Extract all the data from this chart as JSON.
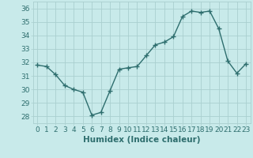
{
  "x": [
    0,
    1,
    2,
    3,
    4,
    5,
    6,
    7,
    8,
    9,
    10,
    11,
    12,
    13,
    14,
    15,
    16,
    17,
    18,
    19,
    20,
    21,
    22,
    23
  ],
  "y": [
    31.8,
    31.7,
    31.1,
    30.3,
    30.0,
    29.8,
    28.1,
    28.3,
    29.9,
    31.5,
    31.6,
    31.7,
    32.5,
    33.3,
    33.5,
    33.9,
    35.4,
    35.8,
    35.7,
    35.8,
    34.5,
    32.1,
    31.2,
    31.9
  ],
  "xlabel": "Humidex (Indice chaleur)",
  "ylim": [
    27.5,
    36.5
  ],
  "xlim": [
    -0.5,
    23.5
  ],
  "yticks": [
    28,
    29,
    30,
    31,
    32,
    33,
    34,
    35,
    36
  ],
  "xticks": [
    0,
    1,
    2,
    3,
    4,
    5,
    6,
    7,
    8,
    9,
    10,
    11,
    12,
    13,
    14,
    15,
    16,
    17,
    18,
    19,
    20,
    21,
    22,
    23
  ],
  "line_color": "#2e6e6e",
  "marker": "+",
  "bg_color": "#c8eaea",
  "grid_color": "#aacfcf",
  "tick_label_color": "#2e6e6e",
  "xlabel_color": "#2e6e6e",
  "font_size": 6.5,
  "xlabel_fontsize": 7.5,
  "line_width": 1.0,
  "marker_size": 4
}
